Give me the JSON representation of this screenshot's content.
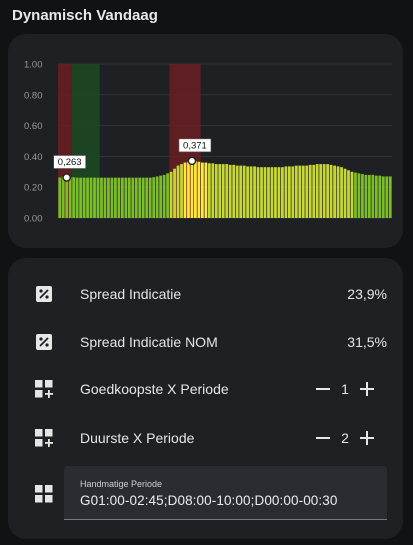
{
  "section_title": "Dynamisch Vandaag",
  "colors": {
    "card_bg": "#1f2024",
    "bar_low": "#7cbd28",
    "bar_mid": "#c7d834",
    "bar_high": "#ffe83a",
    "highlight_red": "#6a1e22",
    "highlight_green": "#1c4a22",
    "grid": "#33353a"
  },
  "chart_data": {
    "type": "bar",
    "title": "",
    "xlabel": "",
    "ylabel": "",
    "ylim": [
      0,
      1.0
    ],
    "y_ticks": [
      "0.00",
      "0.20",
      "0.40",
      "0.60",
      "0.80",
      "1.00"
    ],
    "grid": true,
    "bar_count": 96,
    "values": [
      0.263,
      0.27,
      0.27,
      0.265,
      0.265,
      0.262,
      0.262,
      0.262,
      0.262,
      0.262,
      0.262,
      0.262,
      0.262,
      0.262,
      0.262,
      0.262,
      0.262,
      0.262,
      0.262,
      0.262,
      0.262,
      0.262,
      0.262,
      0.262,
      0.262,
      0.262,
      0.262,
      0.265,
      0.27,
      0.275,
      0.28,
      0.29,
      0.3,
      0.32,
      0.34,
      0.35,
      0.36,
      0.365,
      0.371,
      0.37,
      0.365,
      0.36,
      0.36,
      0.355,
      0.355,
      0.35,
      0.35,
      0.35,
      0.35,
      0.345,
      0.345,
      0.34,
      0.34,
      0.34,
      0.335,
      0.335,
      0.335,
      0.33,
      0.33,
      0.33,
      0.33,
      0.33,
      0.33,
      0.33,
      0.33,
      0.335,
      0.335,
      0.335,
      0.34,
      0.34,
      0.34,
      0.34,
      0.345,
      0.345,
      0.35,
      0.35,
      0.35,
      0.35,
      0.345,
      0.34,
      0.335,
      0.33,
      0.32,
      0.31,
      0.3,
      0.295,
      0.29,
      0.285,
      0.28,
      0.28,
      0.28,
      0.275,
      0.275,
      0.27,
      0.27,
      0.27
    ],
    "highlight_periods": [
      {
        "kind": "cheapest",
        "start_index": 0,
        "end_index": 3,
        "color": "#6a1e22"
      },
      {
        "kind": "cheapest",
        "start_index": 4,
        "end_index": 11,
        "color": "#1c4a22"
      },
      {
        "kind": "most_expensive",
        "start_index": 32,
        "end_index": 40,
        "color": "#6a1e22"
      }
    ],
    "annotations": [
      {
        "label": "0,263",
        "index": 2,
        "value": 0.263
      },
      {
        "label": "0,371",
        "index": 38,
        "value": 0.371
      }
    ]
  },
  "entities": [
    {
      "icon": "percent-box-icon",
      "name": "Spread Indicatie",
      "state": "23,9%"
    },
    {
      "icon": "percent-box-icon",
      "name": "Spread Indicatie NOM",
      "state": "31,5%"
    }
  ],
  "steppers": [
    {
      "name": "Goedkoopste X Periode",
      "minus": "−",
      "value": "1",
      "plus": "+"
    },
    {
      "name": "Duurste X Periode",
      "minus": "−",
      "value": "2",
      "plus": "+"
    }
  ],
  "text_entity": {
    "label": "Handmatige Periode",
    "value": "G01:00-02:45;D08:00-10:00;D00:00-00:30"
  }
}
